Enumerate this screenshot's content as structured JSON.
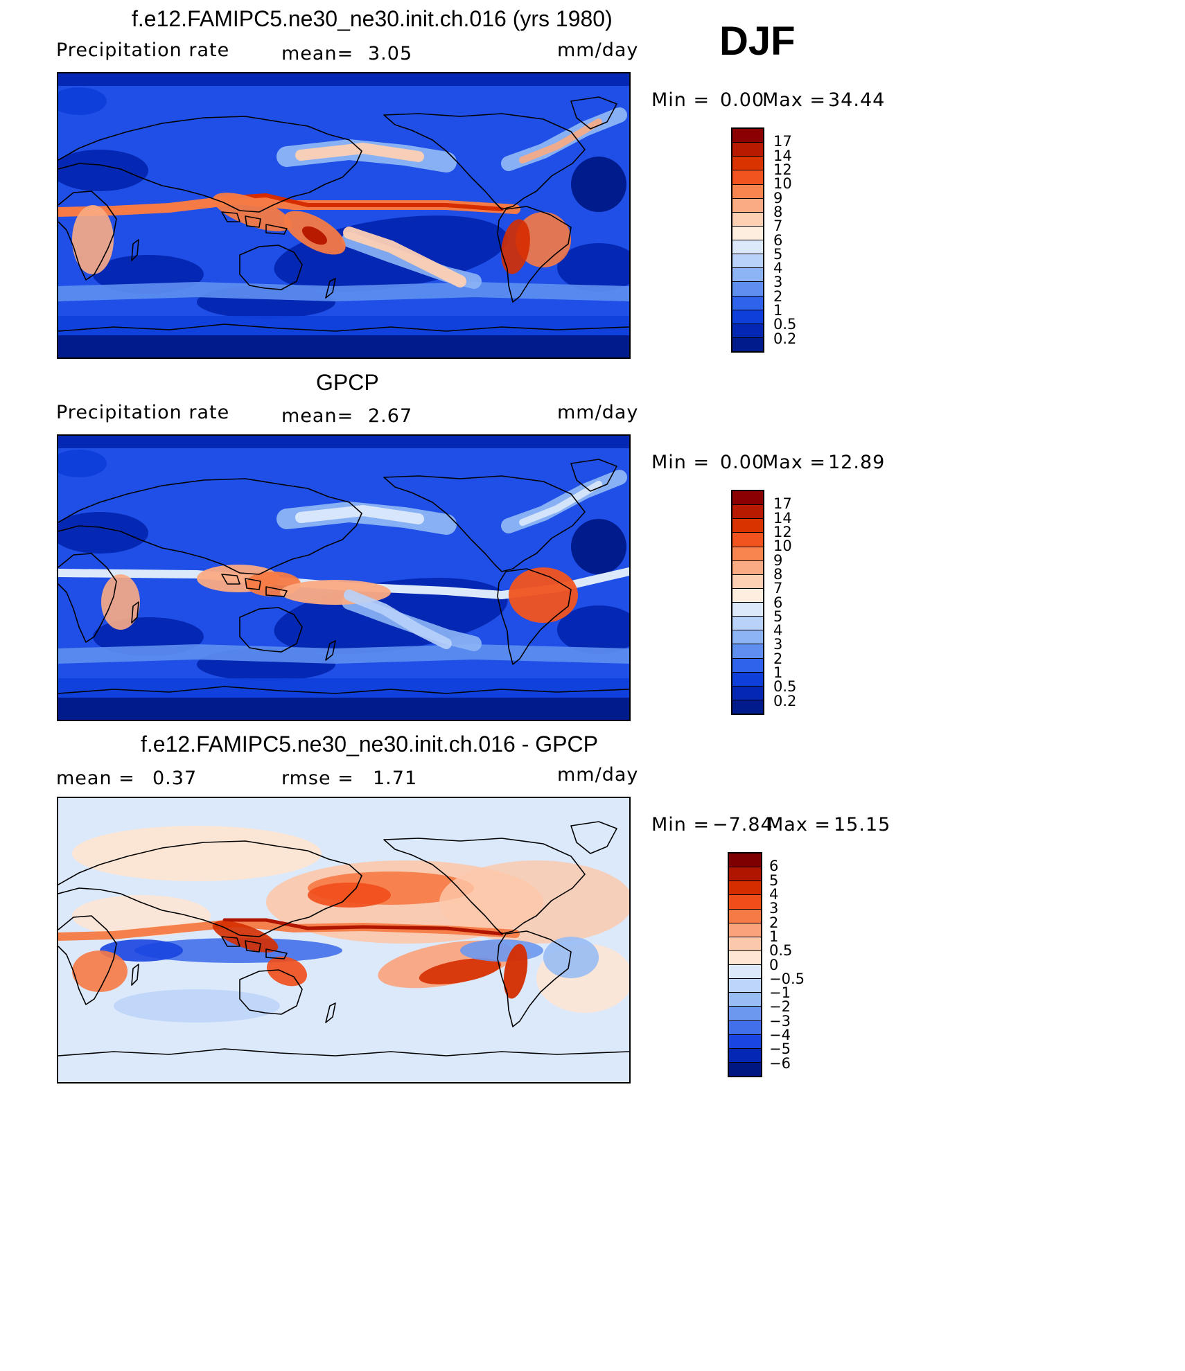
{
  "season": "DJF",
  "panels": [
    {
      "title": "f.e12.FAMIPC5.ne30_ne30.init.ch.016 (yrs 1980)",
      "left_label": "Precipitation rate",
      "center_label": "mean=",
      "center_value": "3.05",
      "units": "mm/day",
      "minmax": {
        "min_label": "Min =",
        "min_value": "0.00",
        "max_label": "Max =",
        "max_value": "34.44"
      },
      "colorbar": {
        "labels": [
          "17",
          "14",
          "12",
          "10",
          "9",
          "8",
          "7",
          "6",
          "5",
          "4",
          "3",
          "2",
          "1",
          "0.5",
          "0.2"
        ],
        "colors": [
          "#8b0000",
          "#b81a00",
          "#d93300",
          "#f25420",
          "#f8844f",
          "#fbab83",
          "#fdd0b4",
          "#fdeedf",
          "#dbe9fb",
          "#b8d2fa",
          "#8db5f5",
          "#5e8ff0",
          "#3063ec",
          "#0f3fdb",
          "#0528b4",
          "#001b8c"
        ]
      },
      "map_style": "model"
    },
    {
      "title": "GPCP",
      "left_label": "Precipitation rate",
      "center_label": "mean=",
      "center_value": "2.67",
      "units": "mm/day",
      "minmax": {
        "min_label": "Min =",
        "min_value": "0.00",
        "max_label": "Max =",
        "max_value": "12.89"
      },
      "colorbar": {
        "labels": [
          "17",
          "14",
          "12",
          "10",
          "9",
          "8",
          "7",
          "6",
          "5",
          "4",
          "3",
          "2",
          "1",
          "0.5",
          "0.2"
        ],
        "colors": [
          "#8b0000",
          "#b81a00",
          "#d93300",
          "#f25420",
          "#f8844f",
          "#fbab83",
          "#fdd0b4",
          "#fdeedf",
          "#dbe9fb",
          "#b8d2fa",
          "#8db5f5",
          "#5e8ff0",
          "#3063ec",
          "#0f3fdb",
          "#0528b4",
          "#001b8c"
        ]
      },
      "map_style": "obs"
    },
    {
      "title": "f.e12.FAMIPC5.ne30_ne30.init.ch.016 - GPCP",
      "left_label": "mean =",
      "left_value": "0.37",
      "center_label": "rmse =",
      "center_value": "1.71",
      "units": "mm/day",
      "minmax": {
        "min_label": "Min =",
        "min_value": "−7.84",
        "max_label": "Max =",
        "max_value": "15.15"
      },
      "colorbar": {
        "labels": [
          "6",
          "5",
          "4",
          "3",
          "2",
          "1",
          "0.5",
          "0",
          "−0.5",
          "−1",
          "−2",
          "−3",
          "−4",
          "−5",
          "−6"
        ],
        "colors": [
          "#7f0000",
          "#b01500",
          "#d52d00",
          "#ef4d1a",
          "#f67a45",
          "#f9a27b",
          "#fcc8ab",
          "#fde6d4",
          "#dce9fb",
          "#bdd5f8",
          "#98bcf4",
          "#6d98ef",
          "#4270ea",
          "#1a45e0",
          "#0528b4",
          "#001680"
        ]
      },
      "map_style": "diff"
    }
  ]
}
